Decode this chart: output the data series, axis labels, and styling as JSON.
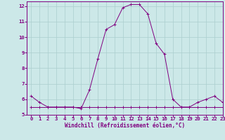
{
  "xlabel": "Windchill (Refroidissement éolien,°C)",
  "temp_x": [
    0,
    1,
    2,
    3,
    4,
    5,
    6,
    7,
    8,
    9,
    10,
    11,
    12,
    13,
    14,
    15,
    16,
    17,
    18,
    19,
    20,
    21,
    22,
    23
  ],
  "temp_y": [
    6.2,
    5.8,
    5.5,
    5.5,
    5.5,
    5.5,
    5.4,
    6.6,
    8.6,
    10.5,
    10.8,
    11.9,
    12.1,
    12.1,
    11.5,
    9.6,
    8.9,
    6.0,
    5.5,
    5.5,
    5.8,
    6.0,
    6.2,
    5.8
  ],
  "wind_x": [
    0,
    1,
    2,
    3,
    4,
    5,
    6,
    7,
    8,
    9,
    10,
    11,
    12,
    13,
    14,
    15,
    16,
    17,
    18,
    19,
    20,
    21,
    22,
    23
  ],
  "wind_y": [
    5.5,
    5.5,
    5.5,
    5.5,
    5.5,
    5.5,
    5.5,
    5.5,
    5.5,
    5.5,
    5.5,
    5.5,
    5.5,
    5.5,
    5.5,
    5.5,
    5.5,
    5.5,
    5.5,
    5.5,
    5.5,
    5.5,
    5.5,
    5.5
  ],
  "line_color": "#800080",
  "bg_color": "#cce8e8",
  "grid_color": "#aacece",
  "xlim": [
    -0.5,
    23
  ],
  "ylim": [
    5,
    12.3
  ],
  "xticks": [
    0,
    1,
    2,
    3,
    4,
    5,
    6,
    7,
    8,
    9,
    10,
    11,
    12,
    13,
    14,
    15,
    16,
    17,
    18,
    19,
    20,
    21,
    22,
    23
  ],
  "yticks": [
    5,
    6,
    7,
    8,
    9,
    10,
    11,
    12
  ],
  "tick_fontsize": 5.2,
  "xlabel_fontsize": 5.5
}
